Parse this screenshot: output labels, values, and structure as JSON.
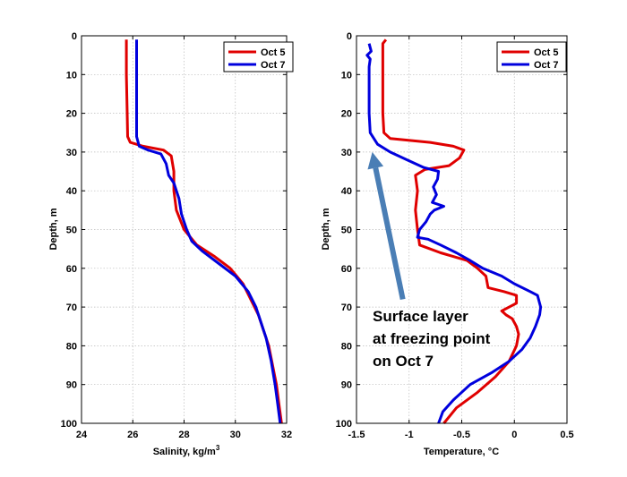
{
  "chart_data": [
    {
      "type": "line",
      "xlabel": "Salinity, kg/m",
      "xlabel_sup": "3",
      "ylabel": "Depth, m",
      "xlim": [
        24,
        32
      ],
      "ylim": [
        0,
        100
      ],
      "y_reversed": true,
      "grid": true,
      "xticks": [
        "24",
        "26",
        "28",
        "30",
        "32"
      ],
      "yticks": [
        "0",
        "10",
        "20",
        "30",
        "40",
        "50",
        "60",
        "70",
        "80",
        "90",
        "100"
      ],
      "legend_position": "top-right",
      "series": [
        {
          "name": "Oct 5",
          "color": "#e00000",
          "points": [
            [
              25.75,
              1
            ],
            [
              25.75,
              10
            ],
            [
              25.78,
              20
            ],
            [
              25.8,
              26
            ],
            [
              25.9,
              27.5
            ],
            [
              26.4,
              28.5
            ],
            [
              27.2,
              29.5
            ],
            [
              27.5,
              31
            ],
            [
              27.6,
              35
            ],
            [
              27.6,
              40
            ],
            [
              27.7,
              45
            ],
            [
              28.0,
              50
            ],
            [
              28.5,
              54
            ],
            [
              29.2,
              57
            ],
            [
              29.8,
              60
            ],
            [
              30.3,
              64
            ],
            [
              30.6,
              68
            ],
            [
              30.9,
              72
            ],
            [
              31.1,
              76
            ],
            [
              31.3,
              80
            ],
            [
              31.45,
              85
            ],
            [
              31.6,
              90
            ],
            [
              31.7,
              95
            ],
            [
              31.8,
              100
            ]
          ]
        },
        {
          "name": "Oct 7",
          "color": "#0000dd",
          "points": [
            [
              26.15,
              1
            ],
            [
              26.15,
              10
            ],
            [
              26.15,
              20
            ],
            [
              26.15,
              26
            ],
            [
              26.25,
              28.5
            ],
            [
              26.6,
              29.5
            ],
            [
              27.1,
              30.5
            ],
            [
              27.3,
              33
            ],
            [
              27.4,
              36
            ],
            [
              27.6,
              38
            ],
            [
              27.8,
              42
            ],
            [
              27.9,
              46
            ],
            [
              28.1,
              50
            ],
            [
              28.3,
              53
            ],
            [
              28.7,
              55.5
            ],
            [
              29.4,
              59
            ],
            [
              30.0,
              62
            ],
            [
              30.5,
              66
            ],
            [
              30.8,
              70
            ],
            [
              31.0,
              74
            ],
            [
              31.2,
              78
            ],
            [
              31.4,
              84
            ],
            [
              31.55,
              90
            ],
            [
              31.65,
              95
            ],
            [
              31.75,
              100
            ]
          ]
        }
      ]
    },
    {
      "type": "line",
      "xlabel": "Temperature, ",
      "xlabel_unit": "°C",
      "ylabel": "Depth, m",
      "xlim": [
        -1.5,
        0.5
      ],
      "ylim": [
        0,
        100
      ],
      "y_reversed": true,
      "grid": true,
      "xticks": [
        "-1.5",
        "-1",
        "-0.5",
        "0",
        "0.5"
      ],
      "yticks": [
        "0",
        "10",
        "20",
        "30",
        "40",
        "50",
        "60",
        "70",
        "80",
        "90",
        "100"
      ],
      "legend_position": "top-right",
      "series": [
        {
          "name": "Oct 5",
          "color": "#e00000",
          "points": [
            [
              -1.22,
              1
            ],
            [
              -1.25,
              2
            ],
            [
              -1.25,
              5
            ],
            [
              -1.25,
              10
            ],
            [
              -1.25,
              20
            ],
            [
              -1.24,
              25
            ],
            [
              -1.18,
              26.5
            ],
            [
              -0.8,
              27.5
            ],
            [
              -0.58,
              28.5
            ],
            [
              -0.48,
              29.5
            ],
            [
              -0.52,
              31.5
            ],
            [
              -0.62,
              33.5
            ],
            [
              -0.85,
              34.5
            ],
            [
              -0.94,
              36
            ],
            [
              -0.92,
              40
            ],
            [
              -0.94,
              45
            ],
            [
              -0.92,
              50
            ],
            [
              -0.9,
              54
            ],
            [
              -0.7,
              56
            ],
            [
              -0.45,
              58
            ],
            [
              -0.35,
              60
            ],
            [
              -0.27,
              62
            ],
            [
              -0.25,
              65
            ],
            [
              -0.1,
              66
            ],
            [
              0.02,
              67
            ],
            [
              0.02,
              69
            ],
            [
              -0.12,
              71
            ],
            [
              -0.08,
              72
            ],
            [
              -0.02,
              73
            ],
            [
              0.02,
              75
            ],
            [
              0.04,
              77
            ],
            [
              0.02,
              80
            ],
            [
              -0.05,
              84
            ],
            [
              -0.18,
              88
            ],
            [
              -0.35,
              92
            ],
            [
              -0.55,
              96
            ],
            [
              -0.67,
              100
            ]
          ]
        },
        {
          "name": "Oct 7",
          "color": "#0000dd",
          "points": [
            [
              -1.38,
              2
            ],
            [
              -1.36,
              4
            ],
            [
              -1.4,
              5
            ],
            [
              -1.37,
              6
            ],
            [
              -1.38,
              8
            ],
            [
              -1.38,
              10
            ],
            [
              -1.38,
              20
            ],
            [
              -1.37,
              25
            ],
            [
              -1.3,
              28
            ],
            [
              -1.18,
              30
            ],
            [
              -1.02,
              32
            ],
            [
              -0.86,
              34
            ],
            [
              -0.72,
              35
            ],
            [
              -0.73,
              37
            ],
            [
              -0.77,
              39
            ],
            [
              -0.74,
              41
            ],
            [
              -0.78,
              43
            ],
            [
              -0.67,
              44
            ],
            [
              -0.76,
              45
            ],
            [
              -0.8,
              46
            ],
            [
              -0.84,
              48
            ],
            [
              -0.9,
              50
            ],
            [
              -0.92,
              52
            ],
            [
              -0.82,
              52.5
            ],
            [
              -0.7,
              54
            ],
            [
              -0.55,
              56
            ],
            [
              -0.42,
              58
            ],
            [
              -0.3,
              60
            ],
            [
              -0.12,
              62
            ],
            [
              0.0,
              64
            ],
            [
              0.15,
              66
            ],
            [
              0.22,
              67
            ],
            [
              0.25,
              70
            ],
            [
              0.24,
              72
            ],
            [
              0.2,
              75
            ],
            [
              0.15,
              78
            ],
            [
              0.07,
              81
            ],
            [
              -0.05,
              84
            ],
            [
              -0.22,
              87
            ],
            [
              -0.42,
              90
            ],
            [
              -0.58,
              94
            ],
            [
              -0.68,
              97
            ],
            [
              -0.72,
              100
            ]
          ]
        }
      ],
      "annotation": {
        "lines": [
          "Surface layer",
          "at freezing point",
          "on Oct 7"
        ],
        "arrow_color": "#4a7eb5",
        "arrow_from": [
          -1.06,
          68
        ],
        "arrow_to": [
          -1.35,
          30
        ]
      }
    }
  ]
}
